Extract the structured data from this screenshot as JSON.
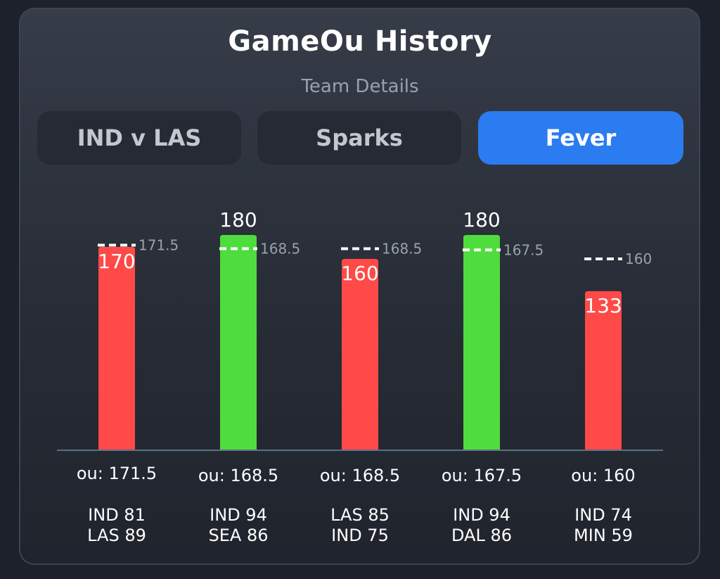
{
  "header": {
    "title": "GameOu History",
    "subtitle": "Team Details"
  },
  "tabs": [
    {
      "label": "IND v LAS",
      "active": false
    },
    {
      "label": "Sparks",
      "active": false
    },
    {
      "label": "Fever",
      "active": true
    }
  ],
  "colors": {
    "over": "#4fdc3d",
    "under": "#ff4a48",
    "active_tab": "#2b7cf0",
    "baseline": "#5d6d8c"
  },
  "chart_data": {
    "type": "bar",
    "title": "GameOu History",
    "subtitle": "Team Details",
    "ylim": [
      0,
      180
    ],
    "grid": false,
    "games": [
      {
        "total": 170,
        "ou_line": 171.5,
        "line_label": "171.5",
        "ou_label": "ou: 171.5",
        "result": "under",
        "team1": "IND 81",
        "team2": "LAS 89"
      },
      {
        "total": 180,
        "ou_line": 168.5,
        "line_label": "168.5",
        "ou_label": "ou: 168.5",
        "result": "over",
        "team1": "IND 94",
        "team2": "SEA 86"
      },
      {
        "total": 160,
        "ou_line": 168.5,
        "line_label": "168.5",
        "ou_label": "ou: 168.5",
        "result": "under",
        "team1": "LAS 85",
        "team2": "IND 75"
      },
      {
        "total": 180,
        "ou_line": 167.5,
        "line_label": "167.5",
        "ou_label": "ou: 167.5",
        "result": "over",
        "team1": "IND 94",
        "team2": "DAL 86"
      },
      {
        "total": 133,
        "ou_line": 160,
        "line_label": "160",
        "ou_label": "ou: 160",
        "result": "under",
        "team1": "IND 74",
        "team2": "MIN 59"
      }
    ]
  }
}
